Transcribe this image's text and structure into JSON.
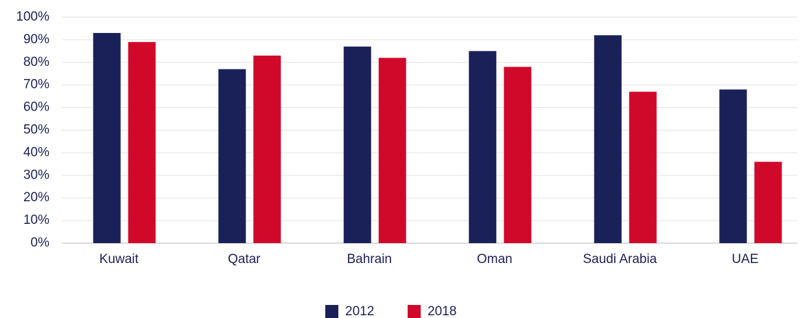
{
  "chart_data": {
    "type": "bar",
    "categories": [
      "Kuwait",
      "Qatar",
      "Bahrain",
      "Oman",
      "Saudi Arabia",
      "UAE"
    ],
    "series": [
      {
        "name": "2012",
        "color": "#1a2159",
        "values": [
          93,
          77,
          87,
          85,
          92,
          68
        ]
      },
      {
        "name": "2018",
        "color": "#d0092b",
        "values": [
          89,
          83,
          82,
          78,
          67,
          36
        ]
      }
    ],
    "ylim": [
      0,
      100
    ],
    "yticks": [
      {
        "value": 0,
        "label": "0%"
      },
      {
        "value": 10,
        "label": "10%"
      },
      {
        "value": 20,
        "label": "20%"
      },
      {
        "value": 30,
        "label": "30%"
      },
      {
        "value": 40,
        "label": "40%"
      },
      {
        "value": 50,
        "label": "50%"
      },
      {
        "value": 60,
        "label": "60%"
      },
      {
        "value": 70,
        "label": "70%"
      },
      {
        "value": 80,
        "label": "80%"
      },
      {
        "value": 90,
        "label": "90%"
      },
      {
        "value": 100,
        "label": "100%"
      }
    ],
    "grid": true,
    "legend": "bottom"
  }
}
